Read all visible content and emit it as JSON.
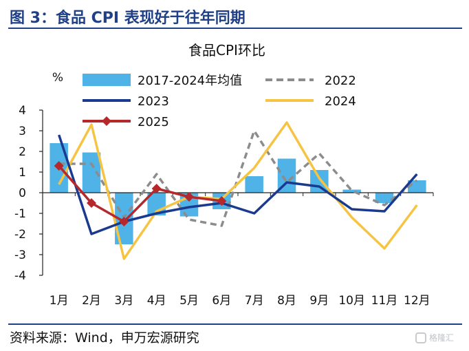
{
  "figure": {
    "title": "图 3：食品 CPI 表现好于往年同期",
    "source": "资料来源：Wind，申万宏源研究",
    "watermark": "格隆汇"
  },
  "colors": {
    "bar": "#4fb3e8",
    "s2022": "#8c8c8c",
    "s2023": "#1a3a8f",
    "s2024": "#f6c342",
    "s2025": "#b5282b"
  },
  "chart_data": {
    "type": "bar",
    "title": "食品CPI环比",
    "ylabel": "%",
    "xlabel": "",
    "ylim": [
      -4,
      4
    ],
    "yticks": [
      4,
      3,
      2,
      1,
      0,
      -1,
      -2,
      -3,
      -4
    ],
    "categories": [
      "1月",
      "2月",
      "3月",
      "4月",
      "5月",
      "6月",
      "7月",
      "8月",
      "9月",
      "10月",
      "11月",
      "12月"
    ],
    "grid": false,
    "legend_position": "top",
    "series": [
      {
        "name": "2017-2024年均值",
        "type": "bar",
        "color_key": "bar",
        "values": [
          2.4,
          1.95,
          -2.5,
          -1.1,
          -1.15,
          -0.8,
          0.8,
          1.65,
          1.1,
          0.15,
          -0.5,
          0.6
        ]
      },
      {
        "name": "2022",
        "type": "line",
        "style": "dashed",
        "color_key": "s2022",
        "values": [
          1.4,
          1.4,
          -1.2,
          0.9,
          -1.3,
          -1.6,
          3.0,
          0.5,
          1.9,
          0.1,
          -0.6,
          0.6
        ]
      },
      {
        "name": "2023",
        "type": "line",
        "style": "solid",
        "color_key": "s2023",
        "values": [
          2.8,
          -2.0,
          -1.4,
          -1.0,
          -0.7,
          -0.5,
          -1.0,
          0.5,
          0.3,
          -0.8,
          -0.9,
          0.9
        ]
      },
      {
        "name": "2024",
        "type": "line",
        "style": "solid",
        "color_key": "s2024",
        "values": [
          0.4,
          3.3,
          -3.2,
          -0.9,
          -0.2,
          -0.3,
          1.2,
          3.4,
          0.7,
          -1.2,
          -2.7,
          -0.6
        ]
      },
      {
        "name": "2025",
        "type": "line",
        "style": "solid",
        "marker": "diamond",
        "color_key": "s2025",
        "values": [
          1.3,
          -0.5,
          -1.4,
          0.2,
          -0.2,
          -0.4,
          null,
          null,
          null,
          null,
          null,
          null
        ]
      }
    ]
  }
}
